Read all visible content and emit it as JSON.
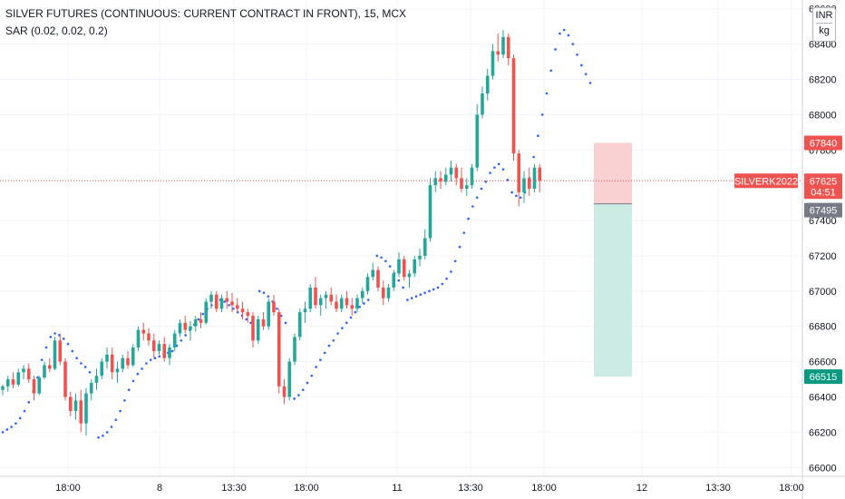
{
  "header": {
    "title": "SILVER FUTURES (CONTINUOUS: CURRENT CONTRACT IN FRONT), 15, MCX",
    "indicator": "SAR (0.02, 0.02, 0.2)",
    "currency": "INR",
    "unit": "kg"
  },
  "colors": {
    "up": "#26a69a",
    "down": "#ef5350",
    "sar": "#2962ff",
    "grid": "#f0f3fa",
    "stop_zone": "#f9d1d3",
    "target_zone": "#cdebe5",
    "price_line": "#ef5350",
    "entry_badge": "#787b86"
  },
  "chart_data": {
    "type": "candlestick",
    "symbol": "SILVERK2022",
    "ylim": [
      65950,
      68650
    ],
    "y_ticks": [
      66000,
      66200,
      66400,
      66600,
      66800,
      67000,
      67200,
      67400,
      67600,
      67800,
      68000,
      68200,
      68400,
      68600
    ],
    "x_ticks": [
      "18:00",
      "8",
      "13:30",
      "18:00",
      "11",
      "13:30",
      "18:00",
      "12",
      "13:30",
      "18:00"
    ],
    "last_price": 67625,
    "countdown": "04:51",
    "position": {
      "stop": 67840,
      "entry": 67495,
      "target": 66515
    },
    "candles": [
      [
        66440,
        66470,
        66410,
        66460
      ],
      [
        66460,
        66520,
        66430,
        66500
      ],
      [
        66500,
        66540,
        66450,
        66470
      ],
      [
        66470,
        66560,
        66460,
        66540
      ],
      [
        66540,
        66580,
        66500,
        66560
      ],
      [
        66560,
        66590,
        66480,
        66500
      ],
      [
        66500,
        66520,
        66380,
        66420
      ],
      [
        66420,
        66520,
        66410,
        66510
      ],
      [
        66510,
        66600,
        66500,
        66580
      ],
      [
        66580,
        66620,
        66540,
        66560
      ],
      [
        66560,
        66740,
        66550,
        66720
      ],
      [
        66720,
        66760,
        66580,
        66600
      ],
      [
        66600,
        66620,
        66380,
        66400
      ],
      [
        66400,
        66430,
        66290,
        66320
      ],
      [
        66320,
        66420,
        66270,
        66380
      ],
      [
        66380,
        66440,
        66200,
        66250
      ],
      [
        66250,
        66450,
        66180,
        66420
      ],
      [
        66420,
        66500,
        66380,
        66480
      ],
      [
        66480,
        66560,
        66440,
        66520
      ],
      [
        66520,
        66620,
        66500,
        66600
      ],
      [
        66600,
        66680,
        66560,
        66640
      ],
      [
        66640,
        66680,
        66500,
        66540
      ],
      [
        66540,
        66600,
        66480,
        66560
      ],
      [
        66560,
        66640,
        66540,
        66620
      ],
      [
        66620,
        66660,
        66560,
        66580
      ],
      [
        66580,
        66700,
        66570,
        66680
      ],
      [
        66680,
        66800,
        66660,
        66780
      ],
      [
        66780,
        66820,
        66720,
        66760
      ],
      [
        66760,
        66790,
        66690,
        66720
      ],
      [
        66720,
        66760,
        66620,
        66660
      ],
      [
        66660,
        66720,
        66640,
        66700
      ],
      [
        66700,
        66740,
        66600,
        66620
      ],
      [
        66620,
        66700,
        66580,
        66680
      ],
      [
        66680,
        66780,
        66660,
        66760
      ],
      [
        66760,
        66840,
        66740,
        66820
      ],
      [
        66820,
        66860,
        66760,
        66780
      ],
      [
        66780,
        66830,
        66720,
        66800
      ],
      [
        66800,
        66860,
        66770,
        66840
      ],
      [
        66840,
        66880,
        66790,
        66820
      ],
      [
        66820,
        66960,
        66810,
        66940
      ],
      [
        66940,
        67000,
        66900,
        66980
      ],
      [
        66980,
        67000,
        66880,
        66900
      ],
      [
        66900,
        66980,
        66880,
        66960
      ],
      [
        66960,
        67000,
        66900,
        66940
      ],
      [
        66940,
        66990,
        66880,
        66920
      ],
      [
        66920,
        66960,
        66880,
        66900
      ],
      [
        66900,
        66940,
        66840,
        66880
      ],
      [
        66880,
        66900,
        66820,
        66860
      ],
      [
        66860,
        66880,
        66680,
        66720
      ],
      [
        66720,
        66860,
        66700,
        66840
      ],
      [
        66840,
        66880,
        66780,
        66800
      ],
      [
        66800,
        66960,
        66780,
        66940
      ],
      [
        66940,
        66980,
        66860,
        66880
      ],
      [
        66880,
        66900,
        66420,
        66460
      ],
      [
        66460,
        66500,
        66360,
        66400
      ],
      [
        66400,
        66620,
        66380,
        66600
      ],
      [
        66600,
        66760,
        66580,
        66740
      ],
      [
        66740,
        66900,
        66720,
        66880
      ],
      [
        66880,
        66940,
        66820,
        66900
      ],
      [
        66900,
        67040,
        66880,
        67020
      ],
      [
        67020,
        67080,
        66900,
        66920
      ],
      [
        66920,
        66980,
        66860,
        66960
      ],
      [
        66960,
        67000,
        66900,
        66980
      ],
      [
        66980,
        67020,
        66920,
        66940
      ],
      [
        66940,
        66980,
        66880,
        66900
      ],
      [
        66900,
        66980,
        66880,
        66960
      ],
      [
        66960,
        67000,
        66900,
        66920
      ],
      [
        66920,
        66960,
        66860,
        66900
      ],
      [
        66900,
        66980,
        66880,
        66960
      ],
      [
        66960,
        67020,
        66930,
        67000
      ],
      [
        67000,
        67100,
        66980,
        67080
      ],
      [
        67080,
        67160,
        67060,
        67120
      ],
      [
        67120,
        67140,
        67000,
        67020
      ],
      [
        67020,
        67060,
        66920,
        66960
      ],
      [
        66960,
        67040,
        66940,
        67020
      ],
      [
        67020,
        67120,
        67000,
        67100
      ],
      [
        67100,
        67220,
        67080,
        67180
      ],
      [
        67180,
        67200,
        67060,
        67080
      ],
      [
        67080,
        67120,
        67020,
        67100
      ],
      [
        67100,
        67200,
        67080,
        67180
      ],
      [
        67180,
        67240,
        67140,
        67200
      ],
      [
        67200,
        67350,
        67180,
        67300
      ],
      [
        67300,
        67640,
        67280,
        67600
      ],
      [
        67600,
        67680,
        67560,
        67640
      ],
      [
        67640,
        67680,
        67580,
        67620
      ],
      [
        67620,
        67700,
        67600,
        67660
      ],
      [
        67660,
        67740,
        67620,
        67700
      ],
      [
        67700,
        67720,
        67600,
        67640
      ],
      [
        67640,
        67700,
        67560,
        67580
      ],
      [
        67580,
        67640,
        67540,
        67600
      ],
      [
        67600,
        67720,
        67580,
        67700
      ],
      [
        67700,
        68060,
        67680,
        68000
      ],
      [
        68000,
        68160,
        67980,
        68120
      ],
      [
        68120,
        68260,
        68080,
        68220
      ],
      [
        68220,
        68400,
        68200,
        68360
      ],
      [
        68360,
        68460,
        68300,
        68340
      ],
      [
        68340,
        68480,
        68320,
        68440
      ],
      [
        68440,
        68460,
        68280,
        68320
      ],
      [
        68320,
        68340,
        67740,
        67780
      ],
      [
        67780,
        67800,
        67480,
        67560
      ],
      [
        67560,
        67680,
        67500,
        67640
      ],
      [
        67640,
        67700,
        67540,
        67580
      ],
      [
        67580,
        67720,
        67560,
        67700
      ],
      [
        67700,
        67720,
        67560,
        67625
      ]
    ],
    "sar": [
      [
        0,
        66200
      ],
      [
        1,
        66215
      ],
      [
        2,
        66230
      ],
      [
        3,
        66250
      ],
      [
        4,
        66280
      ],
      [
        5,
        66320
      ],
      [
        6,
        66370
      ],
      [
        7,
        66430
      ],
      [
        8,
        66510
      ],
      [
        9,
        66610
      ],
      [
        10,
        66680
      ],
      [
        11,
        66740
      ],
      [
        12,
        66760
      ],
      [
        13,
        66750
      ],
      [
        14,
        66730
      ],
      [
        15,
        66700
      ],
      [
        16,
        66660
      ],
      [
        17,
        66620
      ],
      [
        18,
        66590
      ],
      [
        19,
        66570
      ],
      [
        20,
        66540
      ],
      [
        22,
        66170
      ],
      [
        23,
        66180
      ],
      [
        24,
        66200
      ],
      [
        25,
        66230
      ],
      [
        26,
        66270
      ],
      [
        27,
        66320
      ],
      [
        28,
        66380
      ],
      [
        29,
        66440
      ],
      [
        30,
        66490
      ],
      [
        31,
        66530
      ],
      [
        32,
        66560
      ],
      [
        33,
        66590
      ],
      [
        34,
        66610
      ],
      [
        35,
        66620
      ],
      [
        36,
        66630
      ],
      [
        37,
        66640
      ],
      [
        38,
        66650
      ],
      [
        39,
        66660
      ],
      [
        40,
        66690
      ],
      [
        41,
        66720
      ],
      [
        42,
        66750
      ],
      [
        43,
        66780
      ],
      [
        44,
        66810
      ],
      [
        45,
        66840
      ],
      [
        46,
        66870
      ],
      [
        47,
        66900
      ],
      [
        48,
        66920
      ],
      [
        49,
        66940
      ],
      [
        50,
        66950
      ],
      [
        51,
        66940
      ],
      [
        52,
        66920
      ],
      [
        53,
        66900
      ],
      [
        54,
        66880
      ],
      [
        55,
        66860
      ],
      [
        56,
        66840
      ],
      [
        57,
        66820
      ],
      [
        59,
        67000
      ],
      [
        60,
        66990
      ],
      [
        61,
        66970
      ],
      [
        62,
        66940
      ],
      [
        63,
        66900
      ],
      [
        64,
        66860
      ],
      [
        65,
        66820
      ],
      [
        67,
        66390
      ],
      [
        68,
        66410
      ],
      [
        69,
        66440
      ],
      [
        70,
        66480
      ],
      [
        71,
        66520
      ],
      [
        72,
        66570
      ],
      [
        73,
        66610
      ],
      [
        74,
        66650
      ],
      [
        75,
        66690
      ],
      [
        76,
        66720
      ],
      [
        77,
        66760
      ],
      [
        78,
        66790
      ],
      [
        79,
        66820
      ],
      [
        80,
        66850
      ],
      [
        81,
        66880
      ],
      [
        82,
        66910
      ],
      [
        83,
        66930
      ],
      [
        84,
        66950
      ],
      [
        86,
        67200
      ],
      [
        87,
        67190
      ],
      [
        88,
        67170
      ],
      [
        89,
        67140
      ],
      [
        90,
        67100
      ],
      [
        91,
        67060
      ],
      [
        92,
        67020
      ],
      [
        93,
        66950
      ],
      [
        94,
        66960
      ],
      [
        95,
        66970
      ],
      [
        96,
        66980
      ],
      [
        97,
        66990
      ],
      [
        98,
        67000
      ],
      [
        99,
        67010
      ],
      [
        100,
        67020
      ],
      [
        101,
        67040
      ],
      [
        102,
        67070
      ],
      [
        103,
        67110
      ],
      [
        104,
        67170
      ],
      [
        105,
        67250
      ],
      [
        106,
        67330
      ],
      [
        107,
        67410
      ],
      [
        108,
        67480
      ],
      [
        109,
        67530
      ],
      [
        110,
        67580
      ],
      [
        111,
        67620
      ],
      [
        112,
        67670
      ],
      [
        113,
        67700
      ],
      [
        114,
        67720
      ],
      [
        115,
        67690
      ],
      [
        116,
        67630
      ],
      [
        117,
        67560
      ],
      [
        118,
        67540
      ],
      [
        119,
        67530
      ],
      [
        120,
        67560
      ],
      [
        121,
        67640
      ],
      [
        122,
        67760
      ],
      [
        123,
        67880
      ],
      [
        124,
        68000
      ],
      [
        125,
        68120
      ],
      [
        126,
        68250
      ],
      [
        127,
        68370
      ],
      [
        128,
        68460
      ],
      [
        129,
        68480
      ],
      [
        130,
        68450
      ],
      [
        131,
        68400
      ],
      [
        132,
        68340
      ],
      [
        133,
        68280
      ],
      [
        134,
        68230
      ],
      [
        135,
        68180
      ]
    ]
  }
}
